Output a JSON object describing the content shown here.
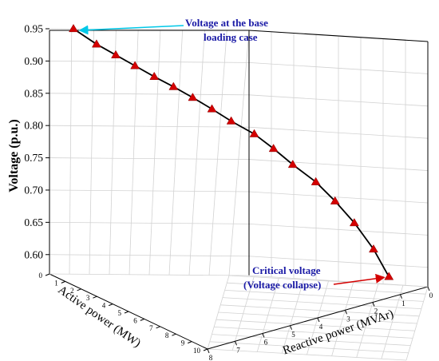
{
  "chart_data": {
    "type": "line",
    "subtype": "3d-line",
    "title": "",
    "ylabel": "Voltage (p.u.)",
    "xlabel_active": "Active power (MW)",
    "xlabel_reactive": "Reactive power (MVAr)",
    "yticks": [
      "0.95",
      "0.90",
      "0.85",
      "0.80",
      "0.75",
      "0.70",
      "0.65",
      "0.60"
    ],
    "active_ticks": [
      "0",
      "1",
      "2",
      "3",
      "4",
      "5",
      "6",
      "7",
      "8",
      "9",
      "10"
    ],
    "reactive_ticks": [
      "0",
      "1",
      "2",
      "3",
      "4",
      "5",
      "6",
      "7",
      "8"
    ],
    "ylim": [
      0.57,
      0.95
    ],
    "series": [
      {
        "marker": "triangle",
        "color": "#d40000",
        "points": [
          {
            "active": 0.5,
            "reactive": 8.4,
            "voltage": 0.95
          },
          {
            "active": 1.1,
            "reactive": 7.7,
            "voltage": 0.927
          },
          {
            "active": 1.6,
            "reactive": 7.3,
            "voltage": 0.911
          },
          {
            "active": 2.1,
            "reactive": 6.9,
            "voltage": 0.895
          },
          {
            "active": 2.6,
            "reactive": 6.5,
            "voltage": 0.879
          },
          {
            "active": 3.1,
            "reactive": 6.1,
            "voltage": 0.864
          },
          {
            "active": 3.6,
            "reactive": 5.7,
            "voltage": 0.848
          },
          {
            "active": 4.1,
            "reactive": 5.3,
            "voltage": 0.831
          },
          {
            "active": 4.6,
            "reactive": 4.9,
            "voltage": 0.813
          },
          {
            "active": 5.2,
            "reactive": 4.5,
            "voltage": 0.794
          },
          {
            "active": 5.7,
            "reactive": 4.1,
            "voltage": 0.772
          },
          {
            "active": 6.2,
            "reactive": 3.6,
            "voltage": 0.748
          },
          {
            "active": 6.8,
            "reactive": 3.1,
            "voltage": 0.722
          },
          {
            "active": 7.3,
            "reactive": 2.6,
            "voltage": 0.693
          },
          {
            "active": 7.8,
            "reactive": 2.1,
            "voltage": 0.66
          },
          {
            "active": 8.3,
            "reactive": 1.5,
            "voltage": 0.62
          },
          {
            "active": 8.7,
            "reactive": 0.9,
            "voltage": 0.578
          }
        ]
      }
    ],
    "grid": true,
    "annotations": [
      {
        "text_lines": [
          "Voltage at the base",
          "loading case"
        ],
        "color": "#1a1aa6",
        "arrow_color": "#00c8e8",
        "target_point": 0
      },
      {
        "text_lines": [
          "Critical voltage",
          "(Voltage collapse)"
        ],
        "color": "#1a1aa6",
        "arrow_color": "#d40000",
        "target_point": 16
      }
    ]
  }
}
